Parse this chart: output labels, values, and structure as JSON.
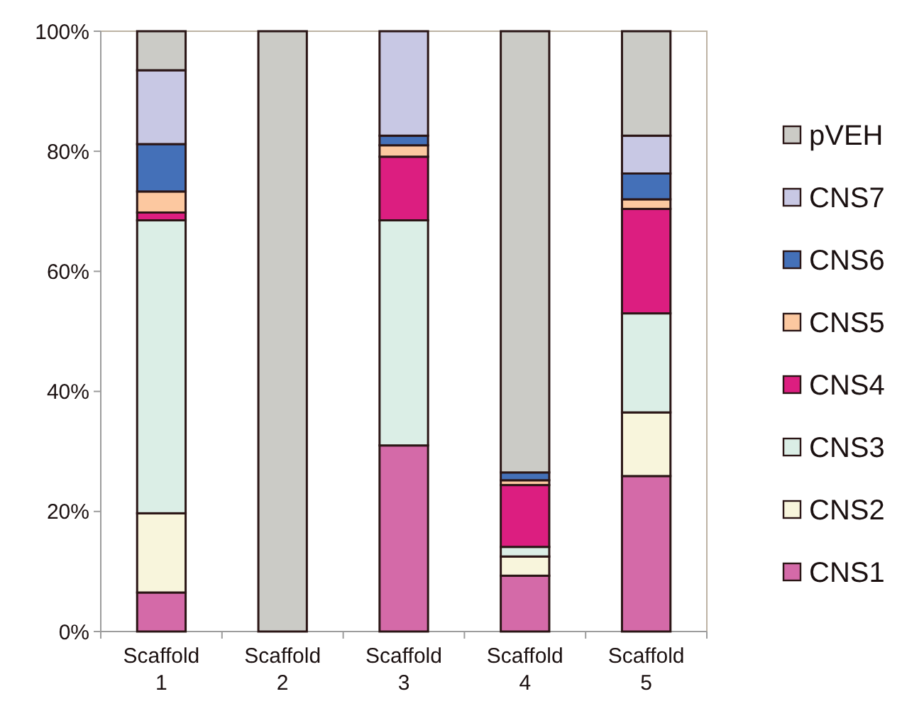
{
  "chart_data": {
    "type": "bar",
    "stacked": true,
    "legend": "right",
    "categories": [
      "Scaffold 1",
      "Scaffold 2",
      "Scaffold 3",
      "Scaffold 4",
      "Scaffold 5"
    ],
    "ylim": [
      0,
      100
    ],
    "yticks": [
      {
        "value": 0,
        "label": "0%"
      },
      {
        "value": 20,
        "label": "20%"
      },
      {
        "value": 40,
        "label": "40%"
      },
      {
        "value": 60,
        "label": "60%"
      },
      {
        "value": 80,
        "label": "80%"
      },
      {
        "value": 100,
        "label": "100%"
      }
    ],
    "series": [
      {
        "name": "CNS1",
        "color": "#d46aa8",
        "values": [
          6.5,
          0,
          31.0,
          9.3,
          25.9
        ]
      },
      {
        "name": "CNS2",
        "color": "#f8f5dc",
        "values": [
          13.2,
          0,
          0,
          3.2,
          10.6
        ]
      },
      {
        "name": "CNS3",
        "color": "#dbeee6",
        "values": [
          48.8,
          0,
          37.5,
          1.6,
          16.5
        ]
      },
      {
        "name": "CNS4",
        "color": "#dc1e80",
        "values": [
          1.3,
          0,
          10.6,
          10.3,
          17.4
        ]
      },
      {
        "name": "CNS5",
        "color": "#fcc8a0",
        "values": [
          3.5,
          0,
          1.9,
          0.8,
          1.6
        ]
      },
      {
        "name": "CNS6",
        "color": "#4470b8",
        "values": [
          7.9,
          0,
          1.6,
          1.3,
          4.3
        ]
      },
      {
        "name": "CNS7",
        "color": "#c8c8e4",
        "values": [
          12.3,
          0,
          17.4,
          0,
          6.3
        ]
      },
      {
        "name": "pVEH",
        "color": "#cbcbc6",
        "values": [
          6.5,
          100,
          0,
          73.5,
          17.4
        ]
      }
    ]
  }
}
